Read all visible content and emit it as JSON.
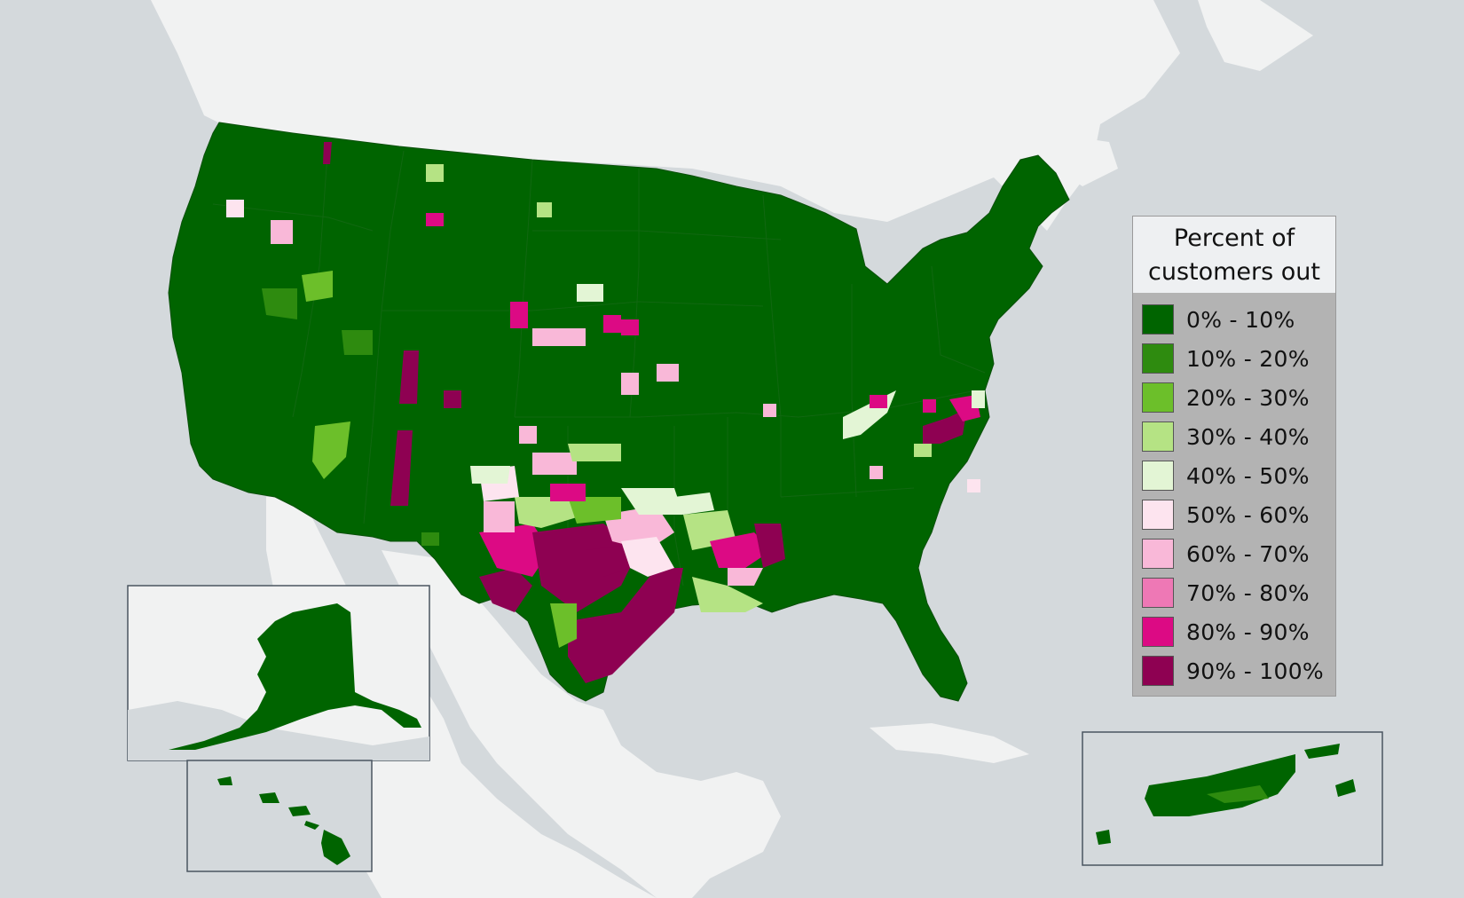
{
  "map": {
    "regions": [
      "contiguous-us",
      "alaska",
      "hawaii",
      "puerto-rico"
    ],
    "base_color": "#006400",
    "water_color": "#d4d9dc",
    "land_color": "#f2f2f2"
  },
  "legend": {
    "title_line1": "Percent of",
    "title_line2": "customers out",
    "items": [
      {
        "label": "0% - 10%",
        "color": "#006400"
      },
      {
        "label": "10% - 20%",
        "color": "#2e8b0f"
      },
      {
        "label": "20% - 30%",
        "color": "#6cbf2a"
      },
      {
        "label": "30% - 40%",
        "color": "#b5e384"
      },
      {
        "label": "40% - 50%",
        "color": "#e3f5d5"
      },
      {
        "label": "50% - 60%",
        "color": "#fde4ef"
      },
      {
        "label": "60% - 70%",
        "color": "#f9b8d8"
      },
      {
        "label": "70% - 80%",
        "color": "#ee78b5"
      },
      {
        "label": "80% - 90%",
        "color": "#dc0a84"
      },
      {
        "label": "90% - 100%",
        "color": "#8e0152"
      }
    ]
  }
}
